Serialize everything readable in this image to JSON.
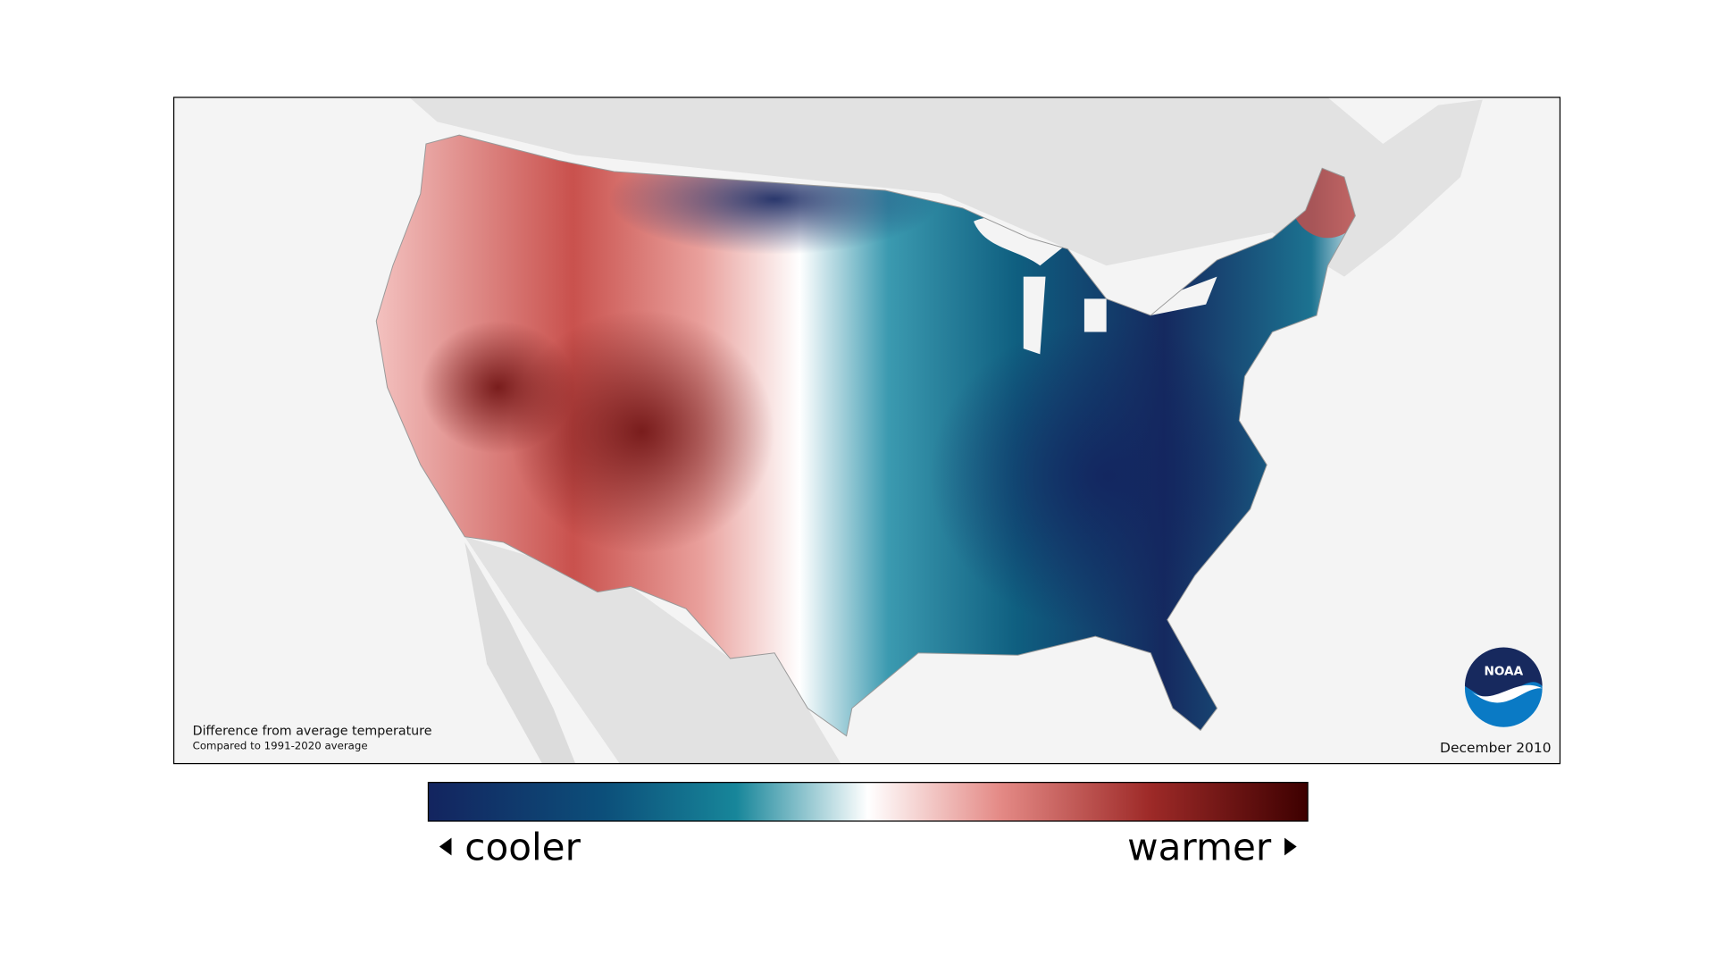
{
  "map": {
    "caption": {
      "title": "Difference from average temperature",
      "subtitle": "Compared to 1991-2020 average"
    },
    "date": "December 2010",
    "logo": "NOAA",
    "legend": {
      "low": "cooler",
      "high": "warmer"
    }
  }
}
